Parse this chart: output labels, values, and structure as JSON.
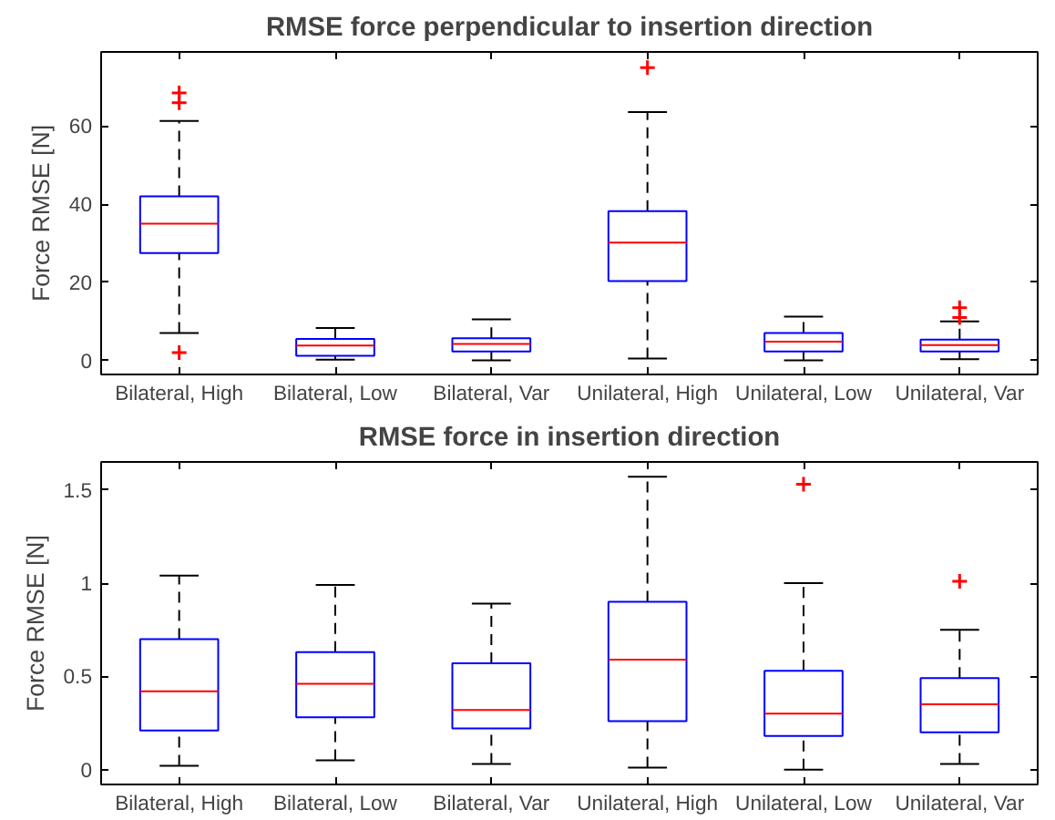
{
  "chart_data": [
    {
      "type": "box",
      "title": "RMSE force perpendicular to insertion direction",
      "ylabel": "Force RMSE [N]",
      "categories": [
        "Bilateral, High",
        "Bilateral, Low",
        "Bilateral, Var",
        "Unilateral, High",
        "Unilateral, Low",
        "Unilateral, Var"
      ],
      "ylim": [
        -3.6,
        79
      ],
      "yticks": [
        0,
        20,
        40,
        60
      ],
      "grid": false,
      "marker": "cross",
      "series": [
        {
          "color": "#0000ff",
          "boxes": [
            {
              "low": 7,
              "q1": 27.5,
              "median": 35,
              "q3": 42,
              "high": 61.3,
              "outliers": [
                2,
                66,
                68.5
              ]
            },
            {
              "low": 0.2,
              "q1": 1.2,
              "median": 3.8,
              "q3": 5.5,
              "high": 8.3
            },
            {
              "low": 0,
              "q1": 2.3,
              "median": 4.2,
              "q3": 5.7,
              "high": 10.5
            },
            {
              "low": 0.5,
              "q1": 20.3,
              "median": 30.2,
              "q3": 38.2,
              "high": 63.6,
              "outliers": [
                75
              ]
            },
            {
              "low": 0,
              "q1": 2.3,
              "median": 4.8,
              "q3": 7,
              "high": 11.2
            },
            {
              "low": 0.3,
              "q1": 2.3,
              "median": 3.9,
              "q3": 5.3,
              "high": 10,
              "outliers": [
                11,
                13.5
              ]
            }
          ]
        }
      ]
    },
    {
      "type": "box",
      "title": "RMSE force in insertion direction",
      "ylabel": "Force RMSE [N]",
      "categories": [
        "Bilateral, High",
        "Bilateral, Low",
        "Bilateral, Var",
        "Unilateral, High",
        "Unilateral, Low",
        "Unilateral, Var"
      ],
      "ylim": [
        -0.08,
        1.65
      ],
      "yticks": [
        0,
        0.5,
        1,
        1.5
      ],
      "grid": false,
      "marker": "cross",
      "series": [
        {
          "color": "#0000ff",
          "boxes": [
            {
              "low": 0.02,
              "q1": 0.21,
              "median": 0.42,
              "q3": 0.7,
              "high": 1.04
            },
            {
              "low": 0.05,
              "q1": 0.28,
              "median": 0.46,
              "q3": 0.63,
              "high": 0.99
            },
            {
              "low": 0.03,
              "q1": 0.22,
              "median": 0.32,
              "q3": 0.57,
              "high": 0.89
            },
            {
              "low": 0.01,
              "q1": 0.26,
              "median": 0.59,
              "q3": 0.9,
              "high": 1.57
            },
            {
              "low": 0,
              "q1": 0.18,
              "median": 0.3,
              "q3": 0.53,
              "high": 1,
              "outliers": [
                1.53
              ]
            },
            {
              "low": 0.03,
              "q1": 0.2,
              "median": 0.35,
              "q3": 0.49,
              "high": 0.75,
              "outliers": [
                1.01
              ]
            }
          ]
        }
      ]
    }
  ]
}
